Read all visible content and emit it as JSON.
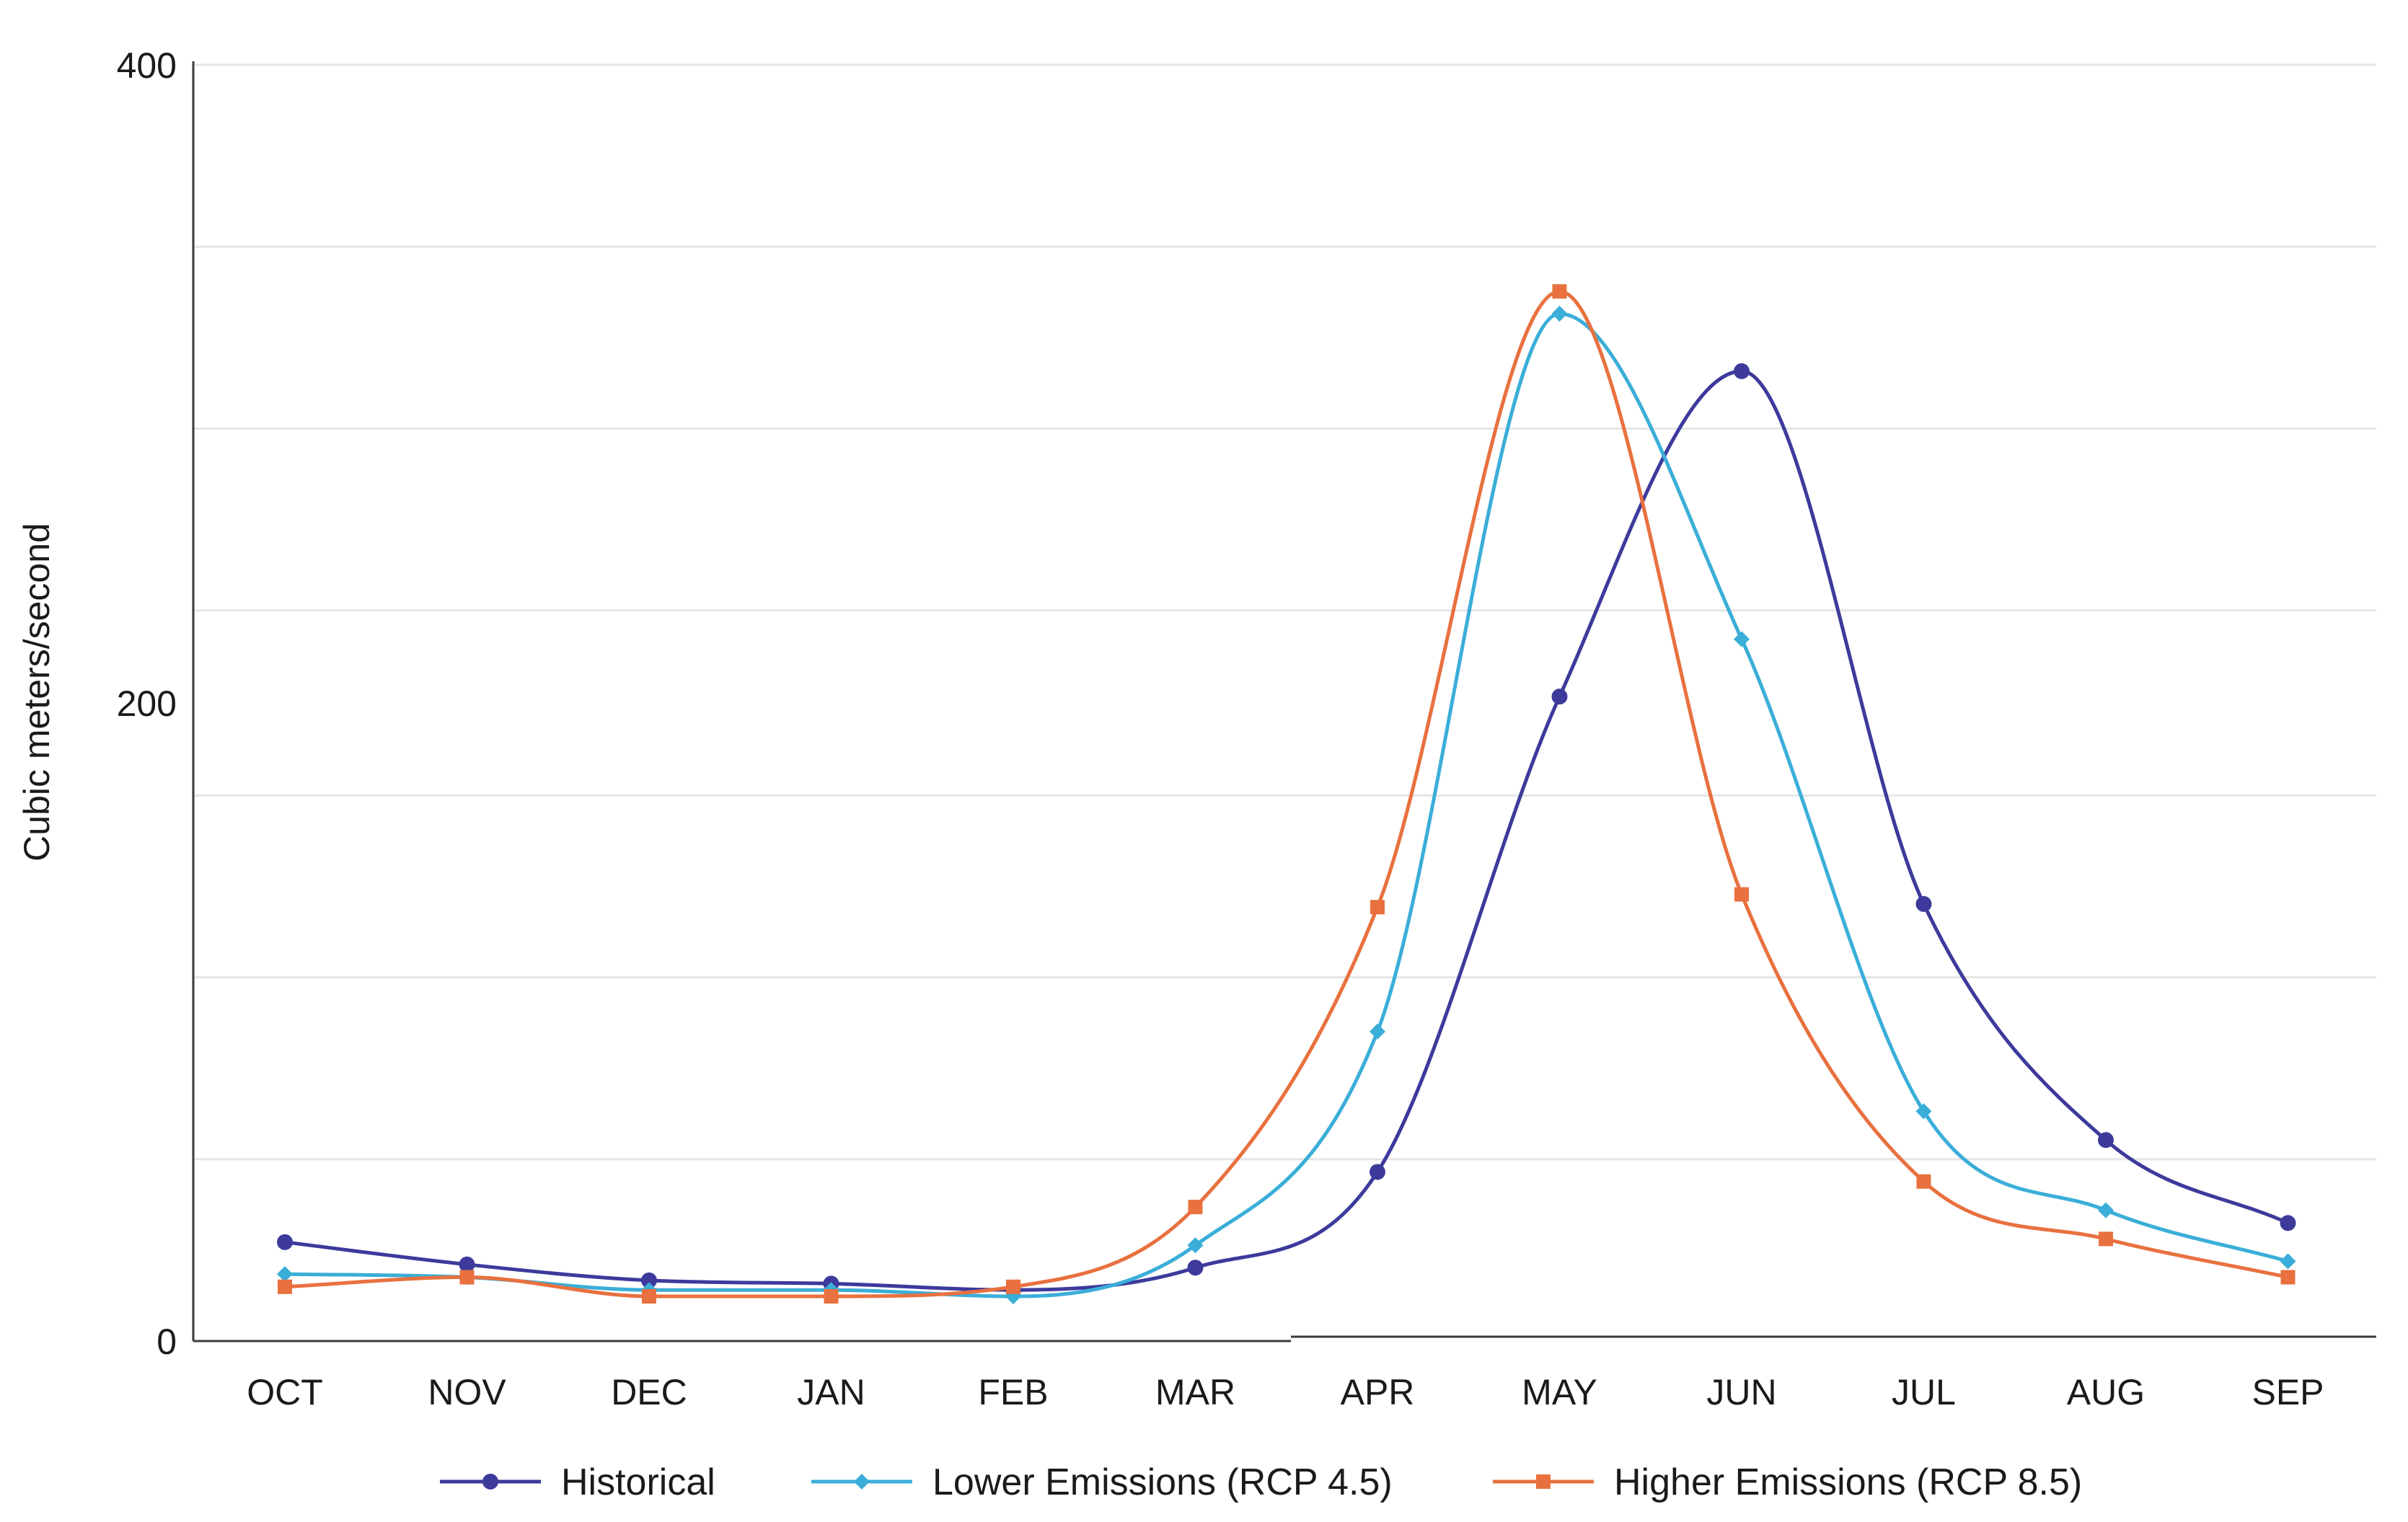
{
  "chart_data": {
    "type": "line",
    "title": "",
    "xlabel": "",
    "ylabel": "Cubic meters/second",
    "ylim": [
      0,
      400
    ],
    "yticks": [
      0,
      200,
      400
    ],
    "gridlines": [
      0,
      57,
      114,
      171,
      229,
      286,
      343,
      400
    ],
    "grid": true,
    "legend_position": "bottom",
    "categories": [
      "OCT",
      "NOV",
      "DEC",
      "JAN",
      "FEB",
      "MAR",
      "APR",
      "MAY",
      "JUN",
      "JUL",
      "AUG",
      "SEP"
    ],
    "series": [
      {
        "name": "Historical",
        "marker": "circle",
        "color": "#3d3a9c",
        "values": [
          31,
          24,
          19,
          18,
          16,
          23,
          53,
          202,
          304,
          137,
          63,
          37
        ]
      },
      {
        "name": "Lower Emissions (RCP 4.5)",
        "marker": "diamond",
        "color": "#3aaed8",
        "values": [
          21,
          20,
          16,
          16,
          14,
          30,
          97,
          322,
          220,
          72,
          41,
          25
        ]
      },
      {
        "name": "Higher Emissions (RCP 8.5)",
        "marker": "square",
        "color": "#e8713f",
        "values": [
          17,
          20,
          14,
          14,
          17,
          42,
          136,
          329,
          140,
          50,
          32,
          20
        ]
      }
    ]
  }
}
